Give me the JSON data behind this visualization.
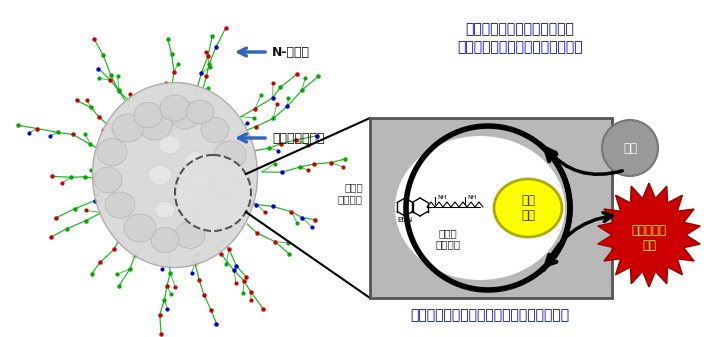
{
  "title_text1": "「糖鎖パターン認識」により",
  "title_text2": "特定の臓器やがんに選択的に移行",
  "bottom_text": "遷移金属触媒が生体内環境で安定化される",
  "label_n_glycan": "N-型糖鎖",
  "label_albumin": "血清アルブミン",
  "label_hydrophobic_pocket": "疏水性\nポケット",
  "label_hydrophobic_ligand": "疏水性\nリガンド",
  "label_metal_catalyst": "金属\n触媒",
  "label_raw_material": "原料",
  "label_anticancer": "抗がん活性\n物質",
  "title_color": "#0000cc",
  "bottom_color": "#0000cc",
  "bg_color": "#ffffff",
  "box_fill": "#b8b8b8",
  "yellow_circle_color": "#ffff00",
  "starburst_color": "#cc0000",
  "anticancer_text_color": "#ffff00",
  "gray_circle_color": "#888888"
}
